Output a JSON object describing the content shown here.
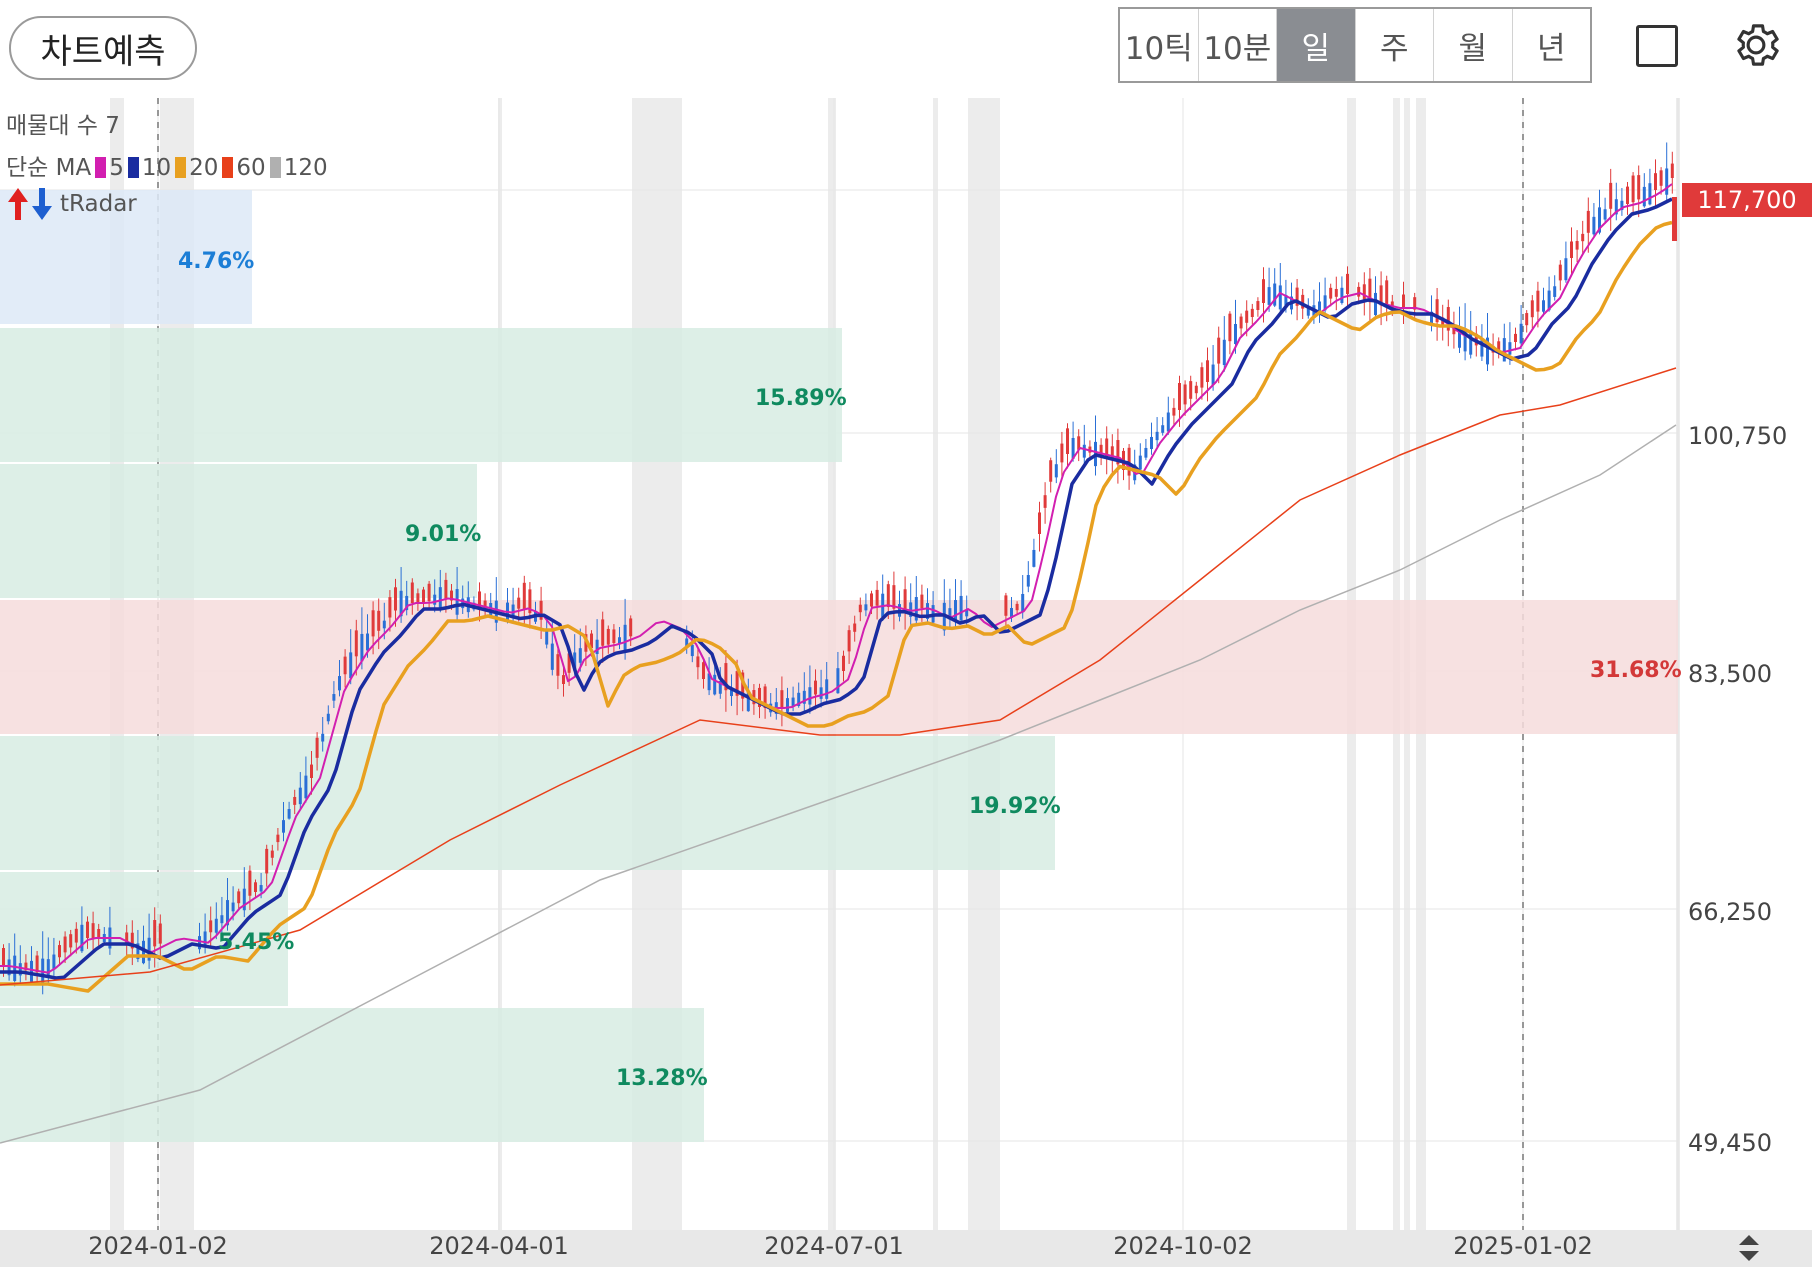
{
  "toolbar": {
    "prediction_label": "차트예측",
    "periods": [
      "10틱",
      "10분",
      "일",
      "주",
      "월",
      "년"
    ],
    "active_period": "일",
    "icons": [
      "square-icon",
      "gear-icon"
    ]
  },
  "legend": {
    "volume_profile": "매물대 수 7",
    "ma_prefix": "단순 MA",
    "ma_items": [
      {
        "label": "5",
        "color": "#d21fb0"
      },
      {
        "label": "10",
        "color": "#1a2ca0"
      },
      {
        "label": "20",
        "color": "#e8a020"
      },
      {
        "label": "60",
        "color": "#e8401a"
      },
      {
        "label": "120",
        "color": "#b0b0b0"
      }
    ],
    "indicator": "tRadar"
  },
  "current_price": "117,700",
  "y_axis": [
    "100,750",
    "83,500",
    "66,250",
    "49,450"
  ],
  "x_axis": [
    "2024-01-02",
    "2024-04-01",
    "2024-07-01",
    "2024-10-02",
    "2025-01-02"
  ],
  "zones": [
    {
      "label": "4.76%",
      "color": "#1c7ed6"
    },
    {
      "label": "15.89%",
      "color": "#0f8a5f"
    },
    {
      "label": "9.01%",
      "color": "#0f8a5f"
    },
    {
      "label": "31.68%",
      "color": "#d33838"
    },
    {
      "label": "19.92%",
      "color": "#0f8a5f"
    },
    {
      "label": "5.45%",
      "color": "#0f8a5f"
    },
    {
      "label": "13.28%",
      "color": "#0f8a5f"
    }
  ],
  "colors": {
    "up": "#e03a3a",
    "down": "#2a6fd6",
    "ma5": "#d21fb0",
    "ma10": "#1a2ca0",
    "ma20": "#e8a020",
    "ma60": "#e8401a",
    "ma120": "#b0b0b0"
  }
}
